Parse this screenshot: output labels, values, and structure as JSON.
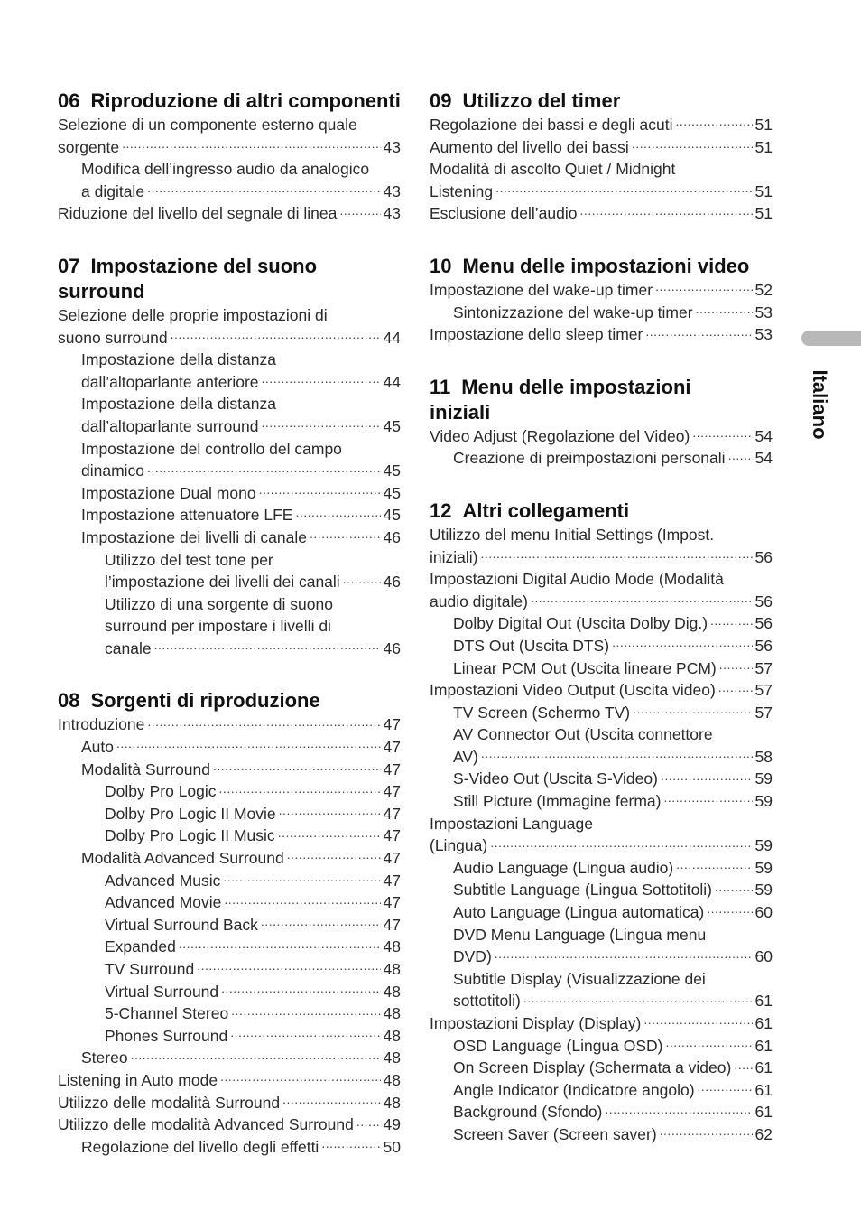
{
  "side_tab": {
    "label": "Italiano",
    "color": "#b8b8b8"
  },
  "columns": [
    [
      {
        "num": "06",
        "title": [
          "Riproduzione di altri componenti"
        ],
        "entries": [
          {
            "level": 0,
            "lines": [
              "Selezione di un componente esterno quale",
              "sorgente"
            ],
            "page": "43"
          },
          {
            "level": 1,
            "lines": [
              "Modifica dell’ingresso audio da analogico",
              "a digitale"
            ],
            "page": "43"
          },
          {
            "level": 0,
            "lines": [
              "Riduzione del livello del segnale di linea"
            ],
            "page": "43"
          }
        ]
      },
      {
        "num": "07",
        "title": [
          "Impostazione del suono surround"
        ],
        "entries": [
          {
            "level": 0,
            "lines": [
              "Selezione delle proprie impostazioni di",
              "suono surround"
            ],
            "page": "44"
          },
          {
            "level": 1,
            "lines": [
              "Impostazione della distanza",
              "dall’altoparlante anteriore"
            ],
            "page": "44"
          },
          {
            "level": 1,
            "lines": [
              "Impostazione della distanza",
              "dall’altoparlante surround"
            ],
            "page": "45"
          },
          {
            "level": 1,
            "lines": [
              "Impostazione del controllo del campo",
              "dinamico"
            ],
            "page": "45"
          },
          {
            "level": 1,
            "lines": [
              "Impostazione Dual mono"
            ],
            "page": "45"
          },
          {
            "level": 1,
            "lines": [
              "Impostazione attenuatore LFE"
            ],
            "page": "45"
          },
          {
            "level": 1,
            "lines": [
              "Impostazione dei livelli di canale"
            ],
            "page": "46"
          },
          {
            "level": 2,
            "lines": [
              "Utilizzo del test tone per",
              "l’impostazione dei livelli dei canali"
            ],
            "page": "46"
          },
          {
            "level": 2,
            "lines": [
              "Utilizzo di una sorgente di suono",
              "surround per impostare i livelli di",
              "canale"
            ],
            "page": "46"
          }
        ]
      },
      {
        "num": "08",
        "title": [
          "Sorgenti di riproduzione"
        ],
        "entries": [
          {
            "level": 0,
            "lines": [
              "Introduzione"
            ],
            "page": "47"
          },
          {
            "level": 1,
            "lines": [
              "Auto"
            ],
            "page": "47"
          },
          {
            "level": 1,
            "lines": [
              "Modalità Surround"
            ],
            "page": "47"
          },
          {
            "level": 2,
            "lines": [
              "Dolby Pro Logic"
            ],
            "page": "47"
          },
          {
            "level": 2,
            "lines": [
              "Dolby Pro Logic II Movie"
            ],
            "page": "47"
          },
          {
            "level": 2,
            "lines": [
              "Dolby Pro Logic II Music"
            ],
            "page": "47"
          },
          {
            "level": 1,
            "lines": [
              "Modalità Advanced Surround"
            ],
            "page": "47"
          },
          {
            "level": 2,
            "lines": [
              "Advanced Music"
            ],
            "page": "47"
          },
          {
            "level": 2,
            "lines": [
              "Advanced Movie"
            ],
            "page": "47"
          },
          {
            "level": 2,
            "lines": [
              "Virtual Surround Back"
            ],
            "page": "47"
          },
          {
            "level": 2,
            "lines": [
              "Expanded"
            ],
            "page": "48"
          },
          {
            "level": 2,
            "lines": [
              "TV Surround"
            ],
            "page": "48"
          },
          {
            "level": 2,
            "lines": [
              "Virtual Surround"
            ],
            "page": "48"
          },
          {
            "level": 2,
            "lines": [
              "5-Channel Stereo"
            ],
            "page": "48"
          },
          {
            "level": 2,
            "lines": [
              "Phones Surround"
            ],
            "page": "48"
          },
          {
            "level": 1,
            "lines": [
              "Stereo"
            ],
            "page": "48"
          },
          {
            "level": 0,
            "lines": [
              "Listening in Auto mode"
            ],
            "page": "48"
          },
          {
            "level": 0,
            "lines": [
              "Utilizzo delle modalità Surround"
            ],
            "page": "48"
          },
          {
            "level": 0,
            "lines": [
              "Utilizzo delle modalità Advanced Surround"
            ],
            "page": "49"
          },
          {
            "level": 1,
            "lines": [
              "Regolazione del livello degli effetti"
            ],
            "page": "50"
          }
        ]
      }
    ],
    [
      {
        "num": "09",
        "title": [
          "Utilizzo del timer"
        ],
        "entries": [
          {
            "level": 0,
            "lines": [
              "Regolazione dei bassi e degli acuti"
            ],
            "page": "51"
          },
          {
            "level": 0,
            "lines": [
              "Aumento del livello dei bassi"
            ],
            "page": "51"
          },
          {
            "level": 0,
            "lines": [
              "Modalità di ascolto Quiet / Midnight",
              "Listening"
            ],
            "page": "51"
          },
          {
            "level": 0,
            "lines": [
              "Esclusione dell’audio"
            ],
            "page": "51"
          }
        ]
      },
      {
        "num": "10",
        "title": [
          "Menu delle impostazioni video"
        ],
        "entries": [
          {
            "level": 0,
            "lines": [
              "Impostazione del wake-up timer"
            ],
            "page": "52"
          },
          {
            "level": 1,
            "lines": [
              "Sintonizzazione del wake-up timer"
            ],
            "page": "53"
          },
          {
            "level": 0,
            "lines": [
              "Impostazione dello sleep timer"
            ],
            "page": "53"
          }
        ]
      },
      {
        "num": "11",
        "title": [
          "Menu delle impostazioni",
          "iniziali"
        ],
        "entries": [
          {
            "level": 0,
            "lines": [
              "Video Adjust (Regolazione del Video)"
            ],
            "page": "54"
          },
          {
            "level": 1,
            "lines": [
              "Creazione di preimpostazioni personali"
            ],
            "page": "54"
          }
        ]
      },
      {
        "num": "12",
        "title": [
          "Altri collegamenti"
        ],
        "entries": [
          {
            "level": 0,
            "lines": [
              "Utilizzo del menu Initial Settings (Impost.",
              "iniziali)"
            ],
            "page": "56"
          },
          {
            "level": 0,
            "lines": [
              "Impostazioni Digital Audio Mode (Modalità",
              "audio digitale)"
            ],
            "page": "56"
          },
          {
            "level": 1,
            "lines": [
              "Dolby Digital Out (Uscita Dolby Dig.)"
            ],
            "page": "56"
          },
          {
            "level": 1,
            "lines": [
              "DTS Out (Uscita DTS)"
            ],
            "page": "56"
          },
          {
            "level": 1,
            "lines": [
              "Linear PCM Out (Uscita lineare PCM)"
            ],
            "page": "57"
          },
          {
            "level": 0,
            "lines": [
              "Impostazioni Video Output (Uscita video)"
            ],
            "page": "57"
          },
          {
            "level": 1,
            "lines": [
              "TV Screen (Schermo TV)"
            ],
            "page": "57"
          },
          {
            "level": 1,
            "lines": [
              "AV Connector Out (Uscita connettore",
              "AV)"
            ],
            "page": "58"
          },
          {
            "level": 1,
            "lines": [
              "S-Video Out (Uscita S-Video)"
            ],
            "page": "59"
          },
          {
            "level": 1,
            "lines": [
              "Still Picture (Immagine ferma)"
            ],
            "page": "59"
          },
          {
            "level": 0,
            "lines": [
              "Impostazioni Language",
              "(Lingua)"
            ],
            "page": "59"
          },
          {
            "level": 1,
            "lines": [
              "Audio Language (Lingua audio)"
            ],
            "page": "59"
          },
          {
            "level": 1,
            "lines": [
              "Subtitle Language (Lingua Sottotitoli)"
            ],
            "page": "59"
          },
          {
            "level": 1,
            "lines": [
              "Auto Language (Lingua automatica)"
            ],
            "page": "60"
          },
          {
            "level": 1,
            "lines": [
              "DVD Menu Language (Lingua menu",
              "DVD)"
            ],
            "page": "60"
          },
          {
            "level": 1,
            "lines": [
              "Subtitle Display (Visualizzazione dei",
              "sottotitoli)"
            ],
            "page": "61"
          },
          {
            "level": 0,
            "lines": [
              "Impostazioni Display (Display)"
            ],
            "page": "61"
          },
          {
            "level": 1,
            "lines": [
              "OSD Language (Lingua OSD)"
            ],
            "page": "61"
          },
          {
            "level": 1,
            "lines": [
              "On Screen Display (Schermata a video)"
            ],
            "page": "61"
          },
          {
            "level": 1,
            "lines": [
              "Angle Indicator (Indicatore angolo)"
            ],
            "page": "61"
          },
          {
            "level": 1,
            "lines": [
              "Background (Sfondo)"
            ],
            "page": "61"
          },
          {
            "level": 1,
            "lines": [
              "Screen Saver (Screen saver)"
            ],
            "page": "62"
          }
        ]
      }
    ]
  ]
}
